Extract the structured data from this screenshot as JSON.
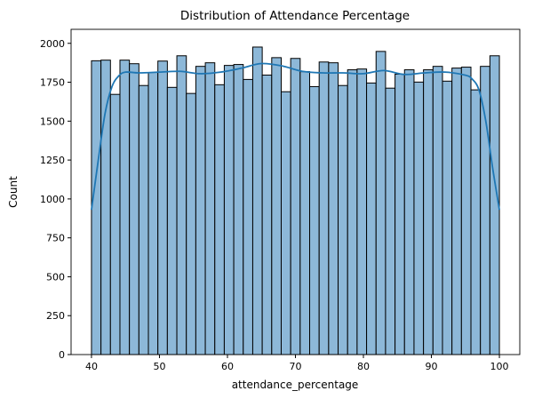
{
  "chart_data": {
    "type": "bar",
    "title": "Distribution of Attendance Percentage",
    "xlabel": "attendance_percentage",
    "ylabel": "Count",
    "xlim": [
      37,
      103
    ],
    "ylim": [
      0,
      2090
    ],
    "xticks": [
      40,
      50,
      60,
      70,
      80,
      90,
      100
    ],
    "yticks": [
      0,
      250,
      500,
      750,
      1000,
      1250,
      1500,
      1750,
      2000
    ],
    "bin_range": [
      40,
      100
    ],
    "values": [
      1888,
      1892,
      1672,
      1892,
      1869,
      1729,
      1813,
      1886,
      1717,
      1920,
      1678,
      1852,
      1875,
      1734,
      1858,
      1864,
      1768,
      1976,
      1796,
      1908,
      1689,
      1903,
      1818,
      1722,
      1880,
      1875,
      1729,
      1830,
      1835,
      1745,
      1948,
      1712,
      1802,
      1830,
      1751,
      1830,
      1852,
      1757,
      1841,
      1847,
      1701,
      1852,
      1920
    ],
    "kde": {
      "x": [
        40,
        41,
        42,
        43,
        44,
        45,
        47,
        50,
        53,
        56,
        59,
        62,
        65,
        68,
        71,
        74,
        77,
        80,
        83,
        86,
        89,
        92,
        95,
        96,
        97,
        98,
        99,
        100
      ],
      "y": [
        930,
        1250,
        1550,
        1720,
        1790,
        1815,
        1810,
        1815,
        1820,
        1805,
        1815,
        1840,
        1870,
        1855,
        1820,
        1810,
        1810,
        1805,
        1825,
        1800,
        1810,
        1815,
        1795,
        1770,
        1700,
        1500,
        1200,
        930
      ]
    },
    "colors": {
      "bar": "#8db8d8",
      "edge": "#000000",
      "kde": "#1f77b4"
    },
    "grid": false
  }
}
